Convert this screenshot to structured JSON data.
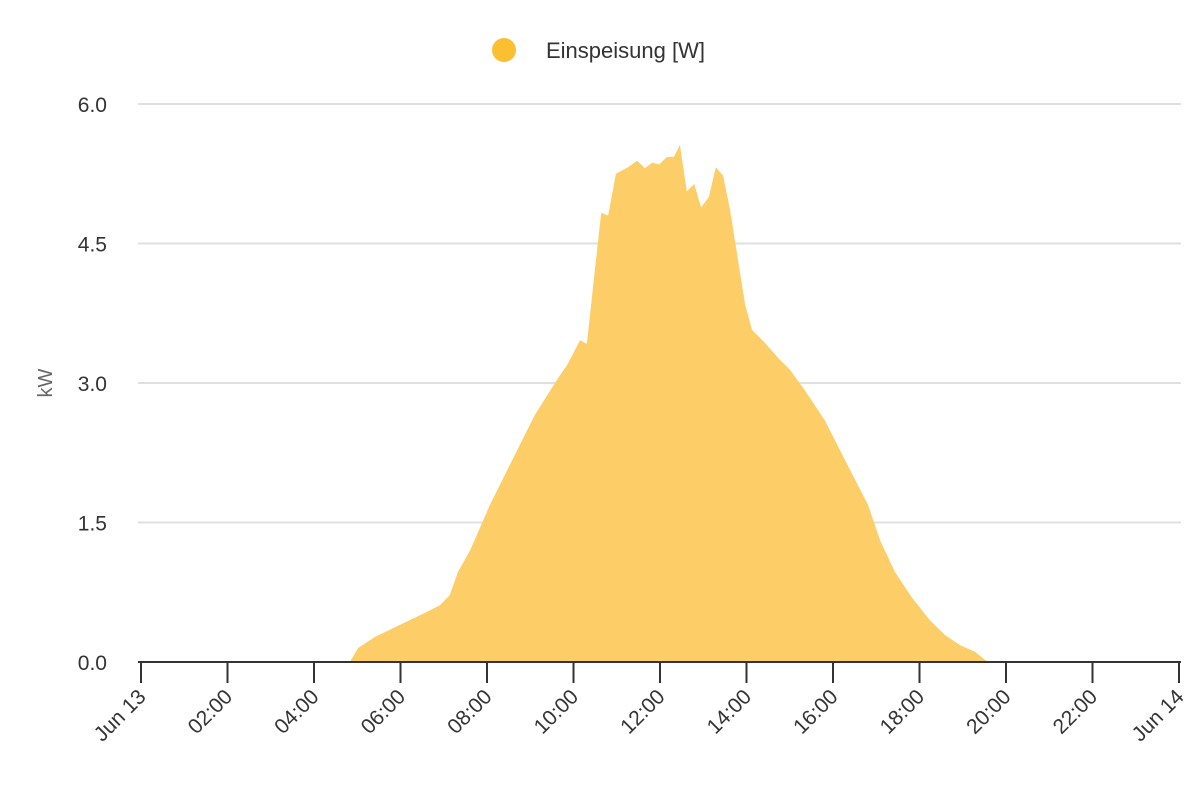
{
  "chart_data": {
    "type": "area",
    "title": "",
    "xlabel": "",
    "ylabel": "kW",
    "ylim": [
      0,
      6.0
    ],
    "xlim_hours": [
      0,
      24
    ],
    "grid": true,
    "legend_position": "top-center",
    "yticks": [
      "0.0",
      "1.5",
      "3.0",
      "4.5",
      "6.0"
    ],
    "ytick_values": [
      0,
      1.5,
      3.0,
      4.5,
      6.0
    ],
    "xtick_labels": [
      "Jun 13",
      "02:00",
      "04:00",
      "06:00",
      "08:00",
      "10:00",
      "12:00",
      "14:00",
      "16:00",
      "18:00",
      "20:00",
      "22:00",
      "Jun 14"
    ],
    "xtick_hours": [
      0,
      2,
      4,
      6,
      8,
      10,
      12,
      14,
      16,
      18,
      20,
      22,
      24
    ],
    "series": [
      {
        "name": "Einspeisung [W]",
        "color": "#fdce68",
        "legend_color": "#fbbf32",
        "x_hours": [
          4.83,
          5.02,
          5.41,
          5.99,
          6.57,
          6.91,
          7.14,
          7.33,
          7.61,
          8.07,
          8.53,
          9.11,
          9.64,
          9.85,
          10.15,
          10.31,
          10.47,
          10.64,
          10.8,
          10.98,
          11.26,
          11.47,
          11.65,
          11.82,
          11.98,
          12.16,
          12.32,
          12.46,
          12.62,
          12.79,
          12.95,
          13.13,
          13.29,
          13.46,
          13.62,
          13.97,
          14.13,
          14.43,
          14.73,
          15.01,
          15.35,
          15.81,
          16.28,
          16.51,
          16.81,
          17.09,
          17.43,
          17.83,
          18.24,
          18.59,
          18.94,
          19.28,
          19.58
        ],
        "values_kw": [
          0,
          0.15,
          0.27,
          0.4,
          0.53,
          0.61,
          0.72,
          0.97,
          1.2,
          1.69,
          2.12,
          2.66,
          3.05,
          3.19,
          3.46,
          3.42,
          4.11,
          4.83,
          4.8,
          5.25,
          5.32,
          5.39,
          5.31,
          5.37,
          5.35,
          5.43,
          5.43,
          5.56,
          5.06,
          5.14,
          4.89,
          5.0,
          5.32,
          5.23,
          4.86,
          3.84,
          3.57,
          3.43,
          3.27,
          3.14,
          2.92,
          2.6,
          2.17,
          1.96,
          1.69,
          1.31,
          0.97,
          0.69,
          0.45,
          0.29,
          0.18,
          0.11,
          0
        ]
      }
    ]
  }
}
